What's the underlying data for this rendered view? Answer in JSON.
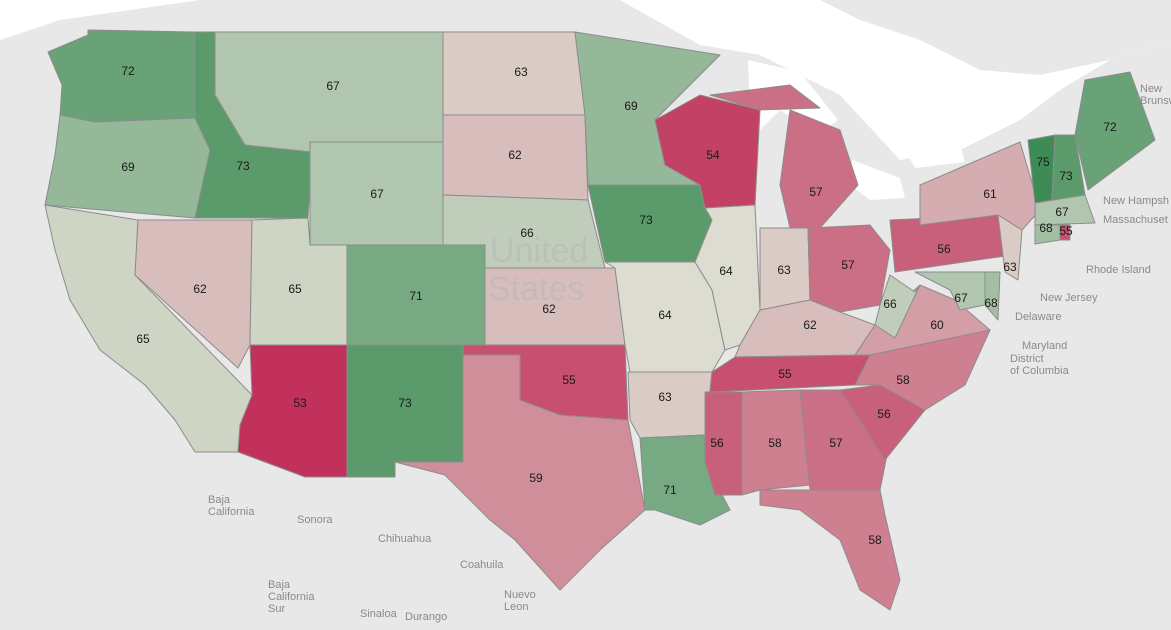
{
  "map_title": "",
  "watermark": [
    "United",
    "States"
  ],
  "colors": {
    "water": "#ffffff",
    "land": "#e8e8e8",
    "lake": "#ffffff",
    "border": "#8c8c8c"
  },
  "color_scale": {
    "low": 53,
    "mid": 64,
    "high": 75,
    "low_color": "#c2315b",
    "mid_color": "#dcdcd0",
    "high_color": "#3e8c55"
  },
  "states": [
    {
      "id": "WA",
      "value": 72
    },
    {
      "id": "OR",
      "value": 69
    },
    {
      "id": "CA",
      "value": 65
    },
    {
      "id": "ID",
      "value": 73
    },
    {
      "id": "NV",
      "value": 62
    },
    {
      "id": "UT",
      "value": 65
    },
    {
      "id": "AZ",
      "value": 53
    },
    {
      "id": "MT",
      "value": 67
    },
    {
      "id": "WY",
      "value": 67
    },
    {
      "id": "CO",
      "value": 71
    },
    {
      "id": "NM",
      "value": 73
    },
    {
      "id": "ND",
      "value": 63
    },
    {
      "id": "SD",
      "value": 62
    },
    {
      "id": "NE",
      "value": 66
    },
    {
      "id": "KS",
      "value": 62
    },
    {
      "id": "OK",
      "value": 55
    },
    {
      "id": "TX",
      "value": 59
    },
    {
      "id": "MN",
      "value": 69
    },
    {
      "id": "IA",
      "value": 73
    },
    {
      "id": "MO",
      "value": 64
    },
    {
      "id": "AR",
      "value": 63
    },
    {
      "id": "LA",
      "value": 71
    },
    {
      "id": "WI",
      "value": 54
    },
    {
      "id": "IL",
      "value": 64
    },
    {
      "id": "MI",
      "value": 57
    },
    {
      "id": "IN",
      "value": 63
    },
    {
      "id": "OH",
      "value": 57
    },
    {
      "id": "KY",
      "value": 62
    },
    {
      "id": "TN",
      "value": 55
    },
    {
      "id": "MS",
      "value": 56
    },
    {
      "id": "AL",
      "value": 58
    },
    {
      "id": "GA",
      "value": 57
    },
    {
      "id": "FL",
      "value": 58
    },
    {
      "id": "SC",
      "value": 56
    },
    {
      "id": "NC",
      "value": 58
    },
    {
      "id": "VA",
      "value": 60
    },
    {
      "id": "WV",
      "value": 66
    },
    {
      "id": "PA",
      "value": 56
    },
    {
      "id": "NY",
      "value": 61
    },
    {
      "id": "NJ",
      "value": 63
    },
    {
      "id": "DE",
      "value": 68
    },
    {
      "id": "MD",
      "value": 67
    },
    {
      "id": "VT",
      "value": 75
    },
    {
      "id": "NH",
      "value": 73
    },
    {
      "id": "ME",
      "value": 72
    },
    {
      "id": "MA",
      "value": 67
    },
    {
      "id": "CT",
      "value": 68
    },
    {
      "id": "RI",
      "value": 55
    }
  ],
  "place_labels": [
    {
      "id": "baja",
      "text": "Baja\nCalifornia"
    },
    {
      "id": "sonora",
      "text": "Sonora"
    },
    {
      "id": "chihuahua",
      "text": "Chihuahua"
    },
    {
      "id": "coahuila",
      "text": "Coahuila"
    },
    {
      "id": "nuevoleon",
      "text": "Nuevo\nLeon"
    },
    {
      "id": "bajasur",
      "text": "Baja\nCalifornia\nSur"
    },
    {
      "id": "sinaloa",
      "text": "Sinaloa"
    },
    {
      "id": "durango",
      "text": "Durango"
    },
    {
      "id": "newhamp",
      "text": "New Hampsh"
    },
    {
      "id": "mass",
      "text": "Massachuset"
    },
    {
      "id": "rhode",
      "text": "Rhode Island"
    },
    {
      "id": "newjersey",
      "text": "New Jersey"
    },
    {
      "id": "delaware",
      "text": "Delaware"
    },
    {
      "id": "maryland",
      "text": "Maryland"
    },
    {
      "id": "dc",
      "text": "District\nof Columbia"
    },
    {
      "id": "newbrun",
      "text": "New\nBrunsw"
    }
  ]
}
